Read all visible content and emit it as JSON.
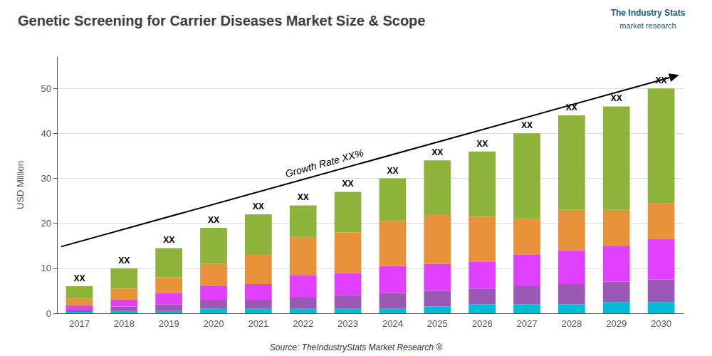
{
  "chart_data": {
    "type": "bar",
    "stacked": true,
    "title": "Genetic Screening for Carrier Diseases Market Size & Scope",
    "ylabel": "USD Million",
    "categories": [
      2017,
      2018,
      2019,
      2020,
      2021,
      2022,
      2023,
      2024,
      2025,
      2026,
      2027,
      2028,
      2029,
      2030
    ],
    "series": [
      {
        "color": "#00bcd4",
        "values": [
          0.3,
          0.5,
          0.5,
          1.0,
          1.0,
          1.0,
          1.0,
          1.0,
          1.5,
          2.0,
          2.0,
          2.0,
          2.5,
          2.5
        ]
      },
      {
        "color": "#9b59b6",
        "values": [
          0.5,
          1.0,
          1.5,
          2.0,
          2.0,
          2.5,
          3.0,
          3.5,
          3.5,
          3.5,
          4.0,
          4.5,
          4.5,
          5.0
        ]
      },
      {
        "color": "#e040fb",
        "values": [
          1.0,
          1.5,
          2.5,
          3.0,
          3.5,
          5.0,
          5.0,
          6.0,
          6.0,
          6.0,
          7.0,
          7.5,
          8.0,
          9.0
        ]
      },
      {
        "color": "#e8923a",
        "values": [
          1.5,
          2.5,
          3.5,
          5.0,
          6.5,
          8.5,
          9.0,
          10.0,
          11.0,
          10.0,
          8.0,
          9.0,
          8.0,
          8.0
        ]
      },
      {
        "color": "#8db33a",
        "values": [
          2.7,
          4.5,
          6.5,
          8.0,
          9.0,
          7.0,
          9.0,
          9.5,
          12.0,
          14.5,
          19.0,
          21.0,
          23.0,
          25.5
        ]
      }
    ],
    "ylim": [
      0,
      57
    ],
    "yticks": [
      0,
      10,
      20,
      30,
      40,
      50
    ],
    "grid": true,
    "bar_label": "XX",
    "annotations": [
      {
        "text": "Growth Rate XX%",
        "arrow": true
      }
    ],
    "source": "Source: TheIndustryStats Market Research ®",
    "logo": [
      "The Industry Stats",
      "market research"
    ]
  }
}
